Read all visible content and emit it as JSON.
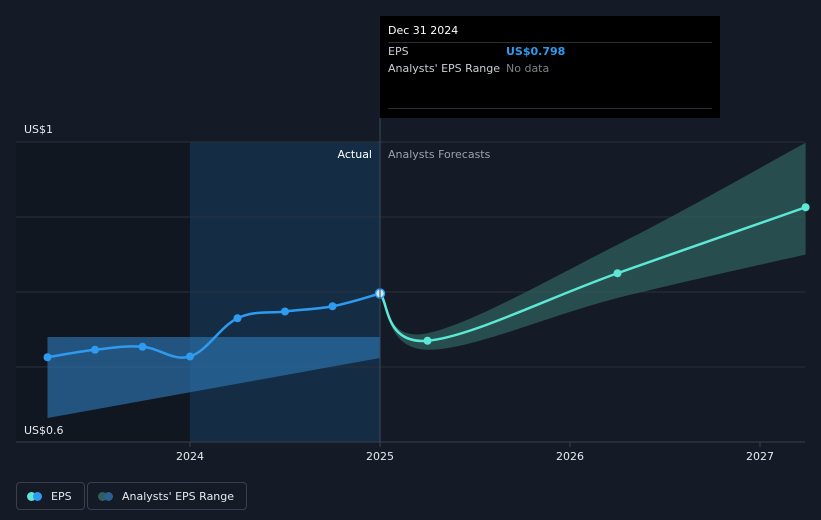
{
  "tooltip": {
    "date": "Dec 31 2024",
    "eps_label": "EPS",
    "eps_value": "US$0.798",
    "range_label": "Analysts' EPS Range",
    "range_value": "No data"
  },
  "labels": {
    "actual": "Actual",
    "forecast": "Analysts Forecasts"
  },
  "legend": {
    "eps": "EPS",
    "range": "Analysts' EPS Range"
  },
  "colors": {
    "background": "#151b26",
    "eps_actual": "#2e9bf0",
    "eps_forecast": "#5ce8d4",
    "range_actual": "#2a6fa8",
    "range_forecast": "#2f5f5c",
    "highlight": "#14304a"
  },
  "chart_data": {
    "type": "line",
    "y_tick_labels": [
      "US$1",
      "US$0.6"
    ],
    "x_tick_labels": [
      "2024",
      "2025",
      "2026",
      "2027"
    ],
    "ylim": [
      0.6,
      1.0
    ],
    "xlim": [
      2023.15,
      2027.24
    ],
    "grid": true,
    "series": [
      {
        "name": "EPS",
        "segment": "actual",
        "x": [
          2023.25,
          2023.5,
          2023.75,
          2024.0,
          2024.25,
          2024.5,
          2024.75,
          2025.0
        ],
        "values": [
          0.713,
          0.723,
          0.727,
          0.714,
          0.765,
          0.774,
          0.781,
          0.798
        ]
      },
      {
        "name": "EPS",
        "segment": "forecast",
        "x": [
          2025.0,
          2025.25,
          2026.25,
          2027.24
        ],
        "values": [
          0.798,
          0.735,
          0.825,
          0.913
        ]
      },
      {
        "name": "Analysts' EPS Range",
        "segment": "actual",
        "x": [
          2023.25,
          2025.0
        ],
        "low": [
          0.632,
          0.712
        ],
        "high": [
          0.74,
          0.74
        ]
      },
      {
        "name": "Analysts' EPS Range",
        "segment": "forecast",
        "x": [
          2025.0,
          2025.25,
          2026.25,
          2027.24
        ],
        "low": [
          0.798,
          0.723,
          0.792,
          0.85
        ],
        "high": [
          0.798,
          0.745,
          0.863,
          0.999
        ]
      }
    ]
  }
}
